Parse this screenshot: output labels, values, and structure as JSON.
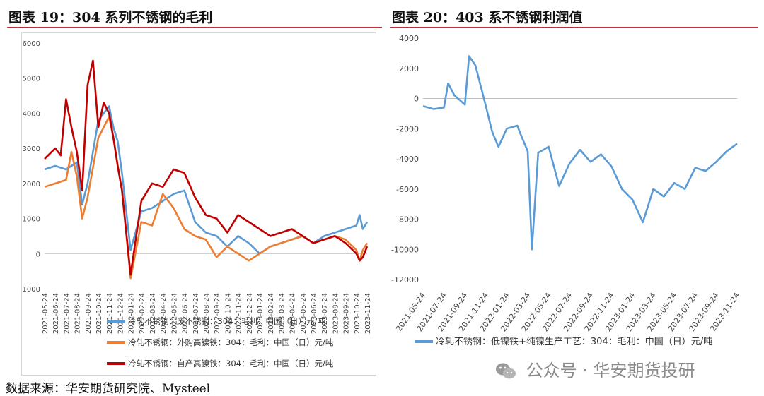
{
  "titles": {
    "left": "图表 19：304 系列不锈钢的毛利",
    "right": "图表 20：403 系不锈钢利润值"
  },
  "source": "数据来源：华安期货研究院、Mysteel",
  "watermark": "公众号 · 华安期货投研",
  "colors": {
    "blue": "#5b9bd5",
    "orange": "#ed7d31",
    "red": "#c00000",
    "rule": "#c0303a"
  },
  "chart_data": [
    {
      "type": "line",
      "ylim": [
        -1000,
        6000
      ],
      "yticks": [
        "6000",
        "5000",
        "4000",
        "3000",
        "2000",
        "1000",
        "0",
        "-1000"
      ],
      "yticks_values": [
        6000,
        5000,
        4000,
        3000,
        2000,
        1000,
        0,
        -1000
      ],
      "xticks": [
        "2021-05-24",
        "2021-06-24",
        "2021-07-24",
        "2021-08-24",
        "2021-09-24",
        "2021-10-24",
        "2021-11-24",
        "2021-12-24",
        "2022-01-24",
        "2022-02-24",
        "2022-03-24",
        "2022-04-24",
        "2022-05-24",
        "2022-06-24",
        "2022-07-24",
        "2022-08-24",
        "2022-09-24",
        "2022-10-24",
        "2022-11-24",
        "2022-12-24",
        "2023-01-24",
        "2023-02-24",
        "2023-03-24",
        "2023-04-24",
        "2023-05-24",
        "2023-06-24",
        "2023-07-24",
        "2023-08-24",
        "2023-09-24",
        "2023-10-24",
        "2023-11-24"
      ],
      "legend_position": "bottom",
      "series": [
        {
          "name": "冷轧不锈钢：废不锈钢：304：毛利：中国（日）元/吨",
          "color": "#5b9bd5",
          "x": [
            0,
            1,
            2,
            3,
            3.5,
            4,
            5,
            6,
            6.4,
            6.8,
            7.2,
            8,
            9,
            10,
            11,
            12,
            13,
            14,
            15,
            16,
            17,
            18,
            19,
            20,
            21,
            22,
            23,
            24,
            25,
            26,
            27,
            28,
            29,
            29.3,
            29.6,
            30
          ],
          "values": [
            2400,
            2500,
            2400,
            2600,
            1400,
            2000,
            3800,
            4200,
            3600,
            3200,
            2300,
            100,
            1200,
            1300,
            1500,
            1700,
            1800,
            900,
            600,
            500,
            200,
            500,
            300,
            0,
            200,
            300,
            400,
            500,
            300,
            500,
            600,
            700,
            800,
            1100,
            700,
            900
          ]
        },
        {
          "name": "冷轧不锈钢：外购高镍铁：304：毛利：中国（日）元/吨",
          "color": "#ed7d31",
          "x": [
            0,
            1,
            2,
            2.5,
            3,
            3.5,
            4,
            5,
            6,
            6.4,
            6.8,
            7.2,
            8,
            9,
            10,
            11,
            12,
            13,
            14,
            15,
            16,
            17,
            18,
            19,
            20,
            21,
            22,
            23,
            24,
            25,
            26,
            27,
            28,
            29,
            29.3,
            29.6,
            30
          ],
          "values": [
            1900,
            2000,
            2100,
            2900,
            2200,
            1000,
            1600,
            3300,
            3900,
            3300,
            2500,
            1800,
            -700,
            900,
            800,
            1700,
            1300,
            700,
            500,
            400,
            -100,
            200,
            0,
            -200,
            0,
            200,
            300,
            400,
            500,
            300,
            400,
            500,
            400,
            100,
            -200,
            100,
            300
          ]
        },
        {
          "name": "冷轧不锈钢：自产高镍铁：304：毛利：中国（日）元/吨",
          "color": "#c00000",
          "x": [
            0,
            1,
            1.5,
            2,
            2.5,
            3,
            3.5,
            4,
            4.5,
            5,
            5.5,
            6,
            6.4,
            6.8,
            7.2,
            8,
            9,
            10,
            11,
            12,
            13,
            14,
            15,
            16,
            17,
            18,
            19,
            20,
            21,
            22,
            23,
            24,
            25,
            26,
            27,
            28,
            29,
            29.3,
            29.6,
            30
          ],
          "values": [
            2700,
            3000,
            2800,
            4400,
            3600,
            2900,
            1800,
            4800,
            5500,
            3600,
            4300,
            4000,
            3300,
            2500,
            1800,
            -600,
            1500,
            2000,
            1900,
            2400,
            2300,
            1600,
            1100,
            1000,
            600,
            1100,
            900,
            700,
            500,
            600,
            700,
            500,
            300,
            400,
            500,
            300,
            0,
            -200,
            -100,
            200
          ]
        }
      ]
    },
    {
      "type": "line",
      "ylim": [
        -12000,
        4000
      ],
      "yticks": [
        "4000",
        "2000",
        "0",
        "-2000",
        "-4000",
        "-6000",
        "-8000",
        "-10000",
        "-12000"
      ],
      "yticks_values": [
        4000,
        2000,
        0,
        -2000,
        -4000,
        -6000,
        -8000,
        -10000,
        -12000
      ],
      "xticks": [
        "2021-05-24",
        "2021-07-24",
        "2021-09-24",
        "2021-11-24",
        "2022-01-24",
        "2022-03-24",
        "2022-05-24",
        "2022-07-24",
        "2022-09-24",
        "2022-11-24",
        "2023-01-24",
        "2023-03-24",
        "2023-05-24",
        "2023-07-24",
        "2023-09-24",
        "2023-11-24"
      ],
      "legend_position": "bottom",
      "series": [
        {
          "name": "冷轧不锈钢：低镍铁+纯镍生产工艺：304：毛利：中国（日）元/吨",
          "color": "#5b9bd5",
          "x": [
            0,
            0.5,
            1,
            1.2,
            1.5,
            2,
            2.2,
            2.5,
            3,
            3.3,
            3.6,
            4,
            4.5,
            4.7,
            5,
            5.2,
            5.5,
            6,
            6.5,
            7,
            7.5,
            8,
            8.5,
            9,
            9.5,
            10,
            10.5,
            11,
            11.5,
            12,
            12.5,
            13,
            13.5,
            14,
            14.5,
            15
          ],
          "values": [
            -500,
            -700,
            -600,
            1000,
            200,
            -400,
            2800,
            2200,
            -500,
            -2200,
            -3200,
            -2000,
            -1800,
            -2500,
            -3500,
            -10000,
            -3600,
            -3200,
            -5800,
            -4300,
            -3400,
            -4200,
            -3700,
            -4500,
            -6000,
            -6700,
            -8200,
            -6000,
            -6500,
            -5600,
            -6000,
            -4600,
            -4800,
            -4200,
            -3500,
            -3000
          ]
        }
      ]
    }
  ]
}
